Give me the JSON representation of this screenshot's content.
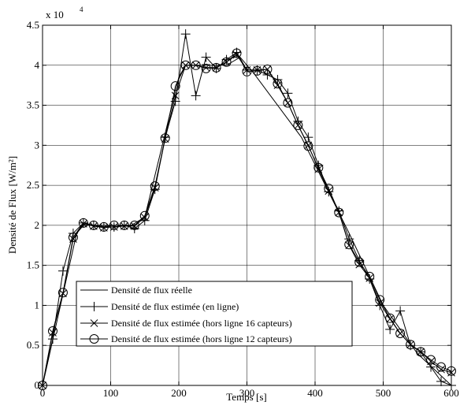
{
  "chart_data": {
    "type": "line",
    "xlabel": "Temps [s]",
    "ylabel": "Densité de Flux [W/m²]",
    "y_multiplier": "x 10",
    "y_exponent": "4",
    "xlim": [
      0,
      600
    ],
    "ylim": [
      0,
      45000
    ],
    "x_ticks": [
      0,
      100,
      200,
      300,
      400,
      500,
      600
    ],
    "x_tick_labels": [
      "0",
      "100",
      "200",
      "300",
      "400",
      "500",
      "600"
    ],
    "y_ticks": [
      0,
      5000,
      10000,
      15000,
      20000,
      25000,
      30000,
      35000,
      40000,
      45000
    ],
    "y_tick_labels": [
      "0",
      "0.5",
      "1",
      "1.5",
      "2",
      "2.5",
      "3",
      "3.5",
      "4",
      "4.5"
    ],
    "grid": true,
    "legend_position": "bottom-left",
    "series": [
      {
        "name": "Densité de flux réelle",
        "marker": "none",
        "x": [
          0,
          50,
          60,
          130,
          150,
          200,
          210,
          270,
          290,
          310,
          380,
          450,
          500,
          550,
          600
        ],
        "y": [
          0,
          19000,
          20000,
          20000,
          21000,
          38500,
          40000,
          40000,
          41000,
          39000,
          31000,
          19000,
          10000,
          4000,
          0
        ]
      },
      {
        "name": "Densité de flux estimée (en ligne)",
        "marker": "plus",
        "x": [
          0,
          15,
          30,
          45,
          60,
          75,
          90,
          105,
          120,
          135,
          150,
          165,
          180,
          195,
          210,
          225,
          240,
          255,
          270,
          285,
          300,
          315,
          330,
          345,
          360,
          375,
          390,
          405,
          420,
          435,
          450,
          465,
          480,
          495,
          510,
          525,
          540,
          555,
          570,
          585,
          600
        ],
        "y": [
          0,
          5800,
          14300,
          19000,
          20300,
          20000,
          19800,
          19800,
          20000,
          19600,
          20600,
          24500,
          31000,
          35500,
          43900,
          36200,
          41000,
          39600,
          40700,
          41600,
          39400,
          39400,
          38800,
          38200,
          36500,
          33000,
          31000,
          27500,
          24200,
          21800,
          18300,
          15600,
          13300,
          10000,
          7000,
          9300,
          5000,
          4200,
          2300,
          500,
          0
        ]
      },
      {
        "name": "Densité de flux estimée (hors ligne 16 capteurs)",
        "marker": "x",
        "x": [
          0,
          15,
          30,
          45,
          60,
          75,
          90,
          105,
          120,
          135,
          150,
          165,
          180,
          195,
          210,
          225,
          240,
          255,
          270,
          285,
          300,
          315,
          330,
          345,
          360,
          375,
          390,
          405,
          420,
          435,
          450,
          465,
          480,
          495,
          510,
          525,
          540,
          555,
          570,
          585,
          600
        ],
        "y": [
          0,
          6600,
          11500,
          18300,
          20200,
          19900,
          19700,
          19800,
          19900,
          19900,
          21000,
          24700,
          30800,
          36200,
          40000,
          40000,
          39700,
          39700,
          40400,
          41300,
          39400,
          39400,
          39500,
          37500,
          35300,
          32500,
          30000,
          27000,
          24300,
          21600,
          17500,
          15100,
          13400,
          10300,
          8300,
          6500,
          5100,
          4200,
          3000,
          2000,
          1600
        ]
      },
      {
        "name": "Densité de flux estimée (hors ligne 12 capteurs)",
        "marker": "circle",
        "x": [
          0,
          15,
          30,
          45,
          60,
          75,
          90,
          105,
          120,
          135,
          150,
          165,
          180,
          195,
          210,
          225,
          240,
          255,
          270,
          285,
          300,
          315,
          330,
          345,
          360,
          375,
          390,
          405,
          420,
          435,
          450,
          465,
          480,
          495,
          510,
          525,
          540,
          555,
          570,
          585,
          600
        ],
        "y": [
          0,
          6800,
          11600,
          18500,
          20300,
          20000,
          19800,
          20000,
          20000,
          20000,
          21200,
          24900,
          30900,
          37400,
          40000,
          40000,
          39600,
          39700,
          40400,
          41500,
          39200,
          39300,
          39500,
          37700,
          35300,
          32500,
          29900,
          27200,
          24600,
          21600,
          17600,
          15400,
          13600,
          10700,
          8400,
          6500,
          5100,
          4200,
          3200,
          2300,
          1800
        ]
      }
    ]
  }
}
